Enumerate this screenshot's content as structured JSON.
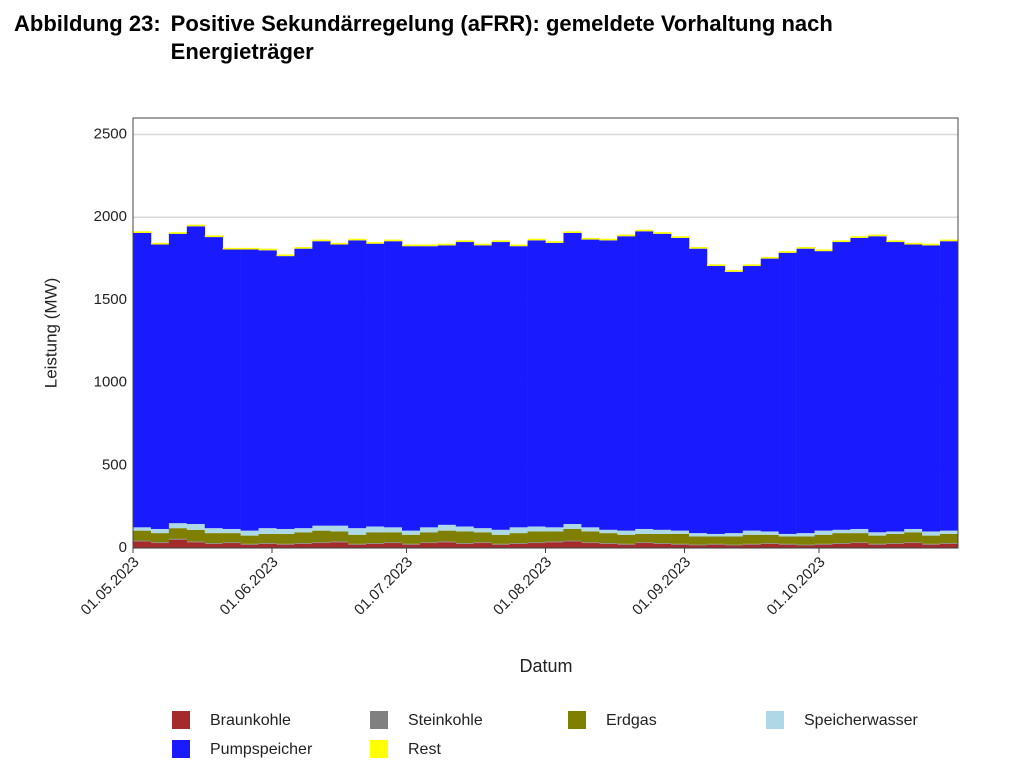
{
  "chart_data": {
    "type": "stacked-bar",
    "figure_number": "Abbildung 23:",
    "title": "Positive Sekundärregelung (aFRR): gemeldete Vorhaltung nach Energieträger",
    "x_label": "Datum",
    "y_label": "Leistung (MW)",
    "x": [
      "01.05.2023",
      "05.05.2023",
      "09.05.2023",
      "13.05.2023",
      "17.05.2023",
      "21.05.2023",
      "25.05.2023",
      "29.05.2023",
      "02.06.2023",
      "06.06.2023",
      "10.06.2023",
      "14.06.2023",
      "18.06.2023",
      "22.06.2023",
      "26.06.2023",
      "30.06.2023",
      "04.07.2023",
      "08.07.2023",
      "12.07.2023",
      "16.07.2023",
      "20.07.2023",
      "24.07.2023",
      "28.07.2023",
      "01.08.2023",
      "05.08.2023",
      "09.08.2023",
      "13.08.2023",
      "17.08.2023",
      "21.08.2023",
      "25.08.2023",
      "29.08.2023",
      "02.09.2023",
      "06.09.2023",
      "10.09.2023",
      "14.09.2023",
      "18.09.2023",
      "22.09.2023",
      "26.09.2023",
      "30.09.2023",
      "04.10.2023",
      "08.10.2023",
      "12.10.2023",
      "16.10.2023",
      "20.10.2023",
      "24.10.2023",
      "28.10.2023"
    ],
    "xlim": [
      "01.05.2023",
      "01.11.2023"
    ],
    "xticks": [
      "01.05.2023",
      "01.06.2023",
      "01.07.2023",
      "01.08.2023",
      "01.09.2023",
      "01.10.2023"
    ],
    "ylim": [
      0,
      2600
    ],
    "yticks": [
      0,
      500,
      1000,
      1500,
      2000,
      2500
    ],
    "grid": true,
    "series": [
      {
        "name": "Braunkohle",
        "color": "#a52a2a",
        "values": [
          40,
          30,
          50,
          35,
          25,
          30,
          20,
          25,
          20,
          25,
          30,
          35,
          20,
          25,
          30,
          20,
          30,
          35,
          25,
          30,
          20,
          25,
          30,
          35,
          40,
          30,
          25,
          20,
          30,
          25,
          20,
          15,
          20,
          15,
          20,
          25,
          20,
          15,
          20,
          25,
          30,
          20,
          25,
          30,
          20,
          25
        ]
      },
      {
        "name": "Steinkohle",
        "color": "#808080",
        "values": [
          5,
          5,
          5,
          5,
          5,
          5,
          5,
          5,
          5,
          5,
          5,
          5,
          5,
          5,
          5,
          5,
          5,
          5,
          5,
          5,
          5,
          5,
          5,
          5,
          5,
          5,
          5,
          5,
          5,
          5,
          5,
          5,
          5,
          5,
          5,
          5,
          5,
          5,
          5,
          5,
          5,
          5,
          5,
          5,
          5,
          5
        ]
      },
      {
        "name": "Erdgas",
        "color": "#808000",
        "values": [
          60,
          55,
          65,
          70,
          60,
          55,
          50,
          55,
          60,
          65,
          70,
          60,
          55,
          65,
          60,
          55,
          60,
          65,
          70,
          60,
          55,
          60,
          65,
          60,
          70,
          65,
          60,
          55,
          50,
          55,
          60,
          50,
          45,
          50,
          55,
          50,
          45,
          50,
          55,
          60,
          55,
          50,
          55,
          60,
          50,
          55
        ]
      },
      {
        "name": "Speicherwasser",
        "color": "#add8e6",
        "values": [
          20,
          25,
          30,
          35,
          30,
          25,
          30,
          35,
          30,
          25,
          30,
          35,
          40,
          35,
          30,
          25,
          30,
          35,
          30,
          25,
          30,
          35,
          30,
          25,
          30,
          25,
          20,
          25,
          30,
          25,
          20,
          20,
          15,
          20,
          25,
          20,
          15,
          20,
          25,
          20,
          25,
          20,
          15,
          20,
          25,
          20
        ]
      },
      {
        "name": "Pumpspeicher",
        "color": "#1a1aff",
        "values": [
          1780,
          1720,
          1750,
          1800,
          1760,
          1690,
          1700,
          1680,
          1650,
          1690,
          1720,
          1700,
          1740,
          1710,
          1730,
          1720,
          1700,
          1690,
          1720,
          1710,
          1740,
          1700,
          1730,
          1720,
          1760,
          1740,
          1750,
          1780,
          1800,
          1790,
          1770,
          1720,
          1620,
          1580,
          1600,
          1650,
          1700,
          1720,
          1690,
          1740,
          1760,
          1790,
          1750,
          1720,
          1730,
          1750
        ]
      },
      {
        "name": "Rest",
        "color": "#ffff00",
        "values": [
          10,
          10,
          10,
          10,
          10,
          10,
          10,
          10,
          10,
          10,
          10,
          10,
          10,
          10,
          10,
          10,
          10,
          10,
          10,
          10,
          10,
          10,
          10,
          10,
          10,
          10,
          10,
          10,
          10,
          10,
          10,
          10,
          10,
          10,
          10,
          10,
          10,
          10,
          10,
          10,
          10,
          10,
          10,
          10,
          10,
          10
        ]
      }
    ]
  }
}
